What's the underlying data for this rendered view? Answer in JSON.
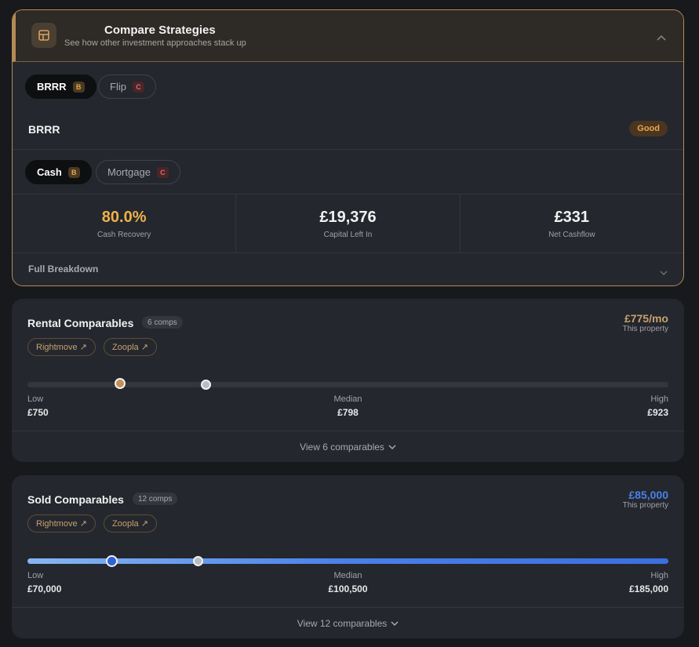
{
  "strategies": {
    "title": "Compare Strategies",
    "subtitle": "See how other investment approaches stack up",
    "icon": "strategy-icon",
    "strategy_tabs": [
      {
        "label": "BRRR",
        "grade": "B",
        "active": true
      },
      {
        "label": "Flip",
        "grade": "C",
        "active": false
      }
    ],
    "selected_strategy": "BRRR",
    "rating": "Good",
    "finance_tabs": [
      {
        "label": "Cash",
        "grade": "B",
        "active": true
      },
      {
        "label": "Mortgage",
        "grade": "C",
        "active": false
      }
    ],
    "metrics": [
      {
        "value": "80.0%",
        "label": "Cash Recovery"
      },
      {
        "value": "£19,376",
        "label": "Capital Left In"
      },
      {
        "value": "£331",
        "label": "Net Cashflow"
      }
    ],
    "breakdown_label": "Full Breakdown"
  },
  "rental": {
    "title": "Rental Comparables",
    "count": "6 comps",
    "price": "£775/mo",
    "price_sub": "This property",
    "links": [
      "Rightmove ↗",
      "Zoopla ↗"
    ],
    "range": {
      "low": 750,
      "median": 798,
      "high": 923,
      "property": 775
    },
    "low_label": "Low",
    "low_value": "£750",
    "median_label": "Median",
    "median_value": "£798",
    "high_label": "High",
    "high_value": "£923",
    "view_label": "View 6 comparables"
  },
  "sold": {
    "title": "Sold Comparables",
    "count": "12 comps",
    "price": "£85,000",
    "price_sub": "This property",
    "links": [
      "Rightmove ↗",
      "Zoopla ↗"
    ],
    "range": {
      "low": 70000,
      "median": 100500,
      "high": 185000,
      "property": 85000
    },
    "low_label": "Low",
    "low_value": "£70,000",
    "median_label": "Median",
    "median_value": "£100,500",
    "high_label": "High",
    "high_value": "£185,000",
    "view_label": "View 12 comparables"
  },
  "colors": {
    "accent_orange": "#f0b14a",
    "link_orange": "#c8a16f",
    "accent_blue": "#4a80e8",
    "card_bg": "#24272d"
  }
}
